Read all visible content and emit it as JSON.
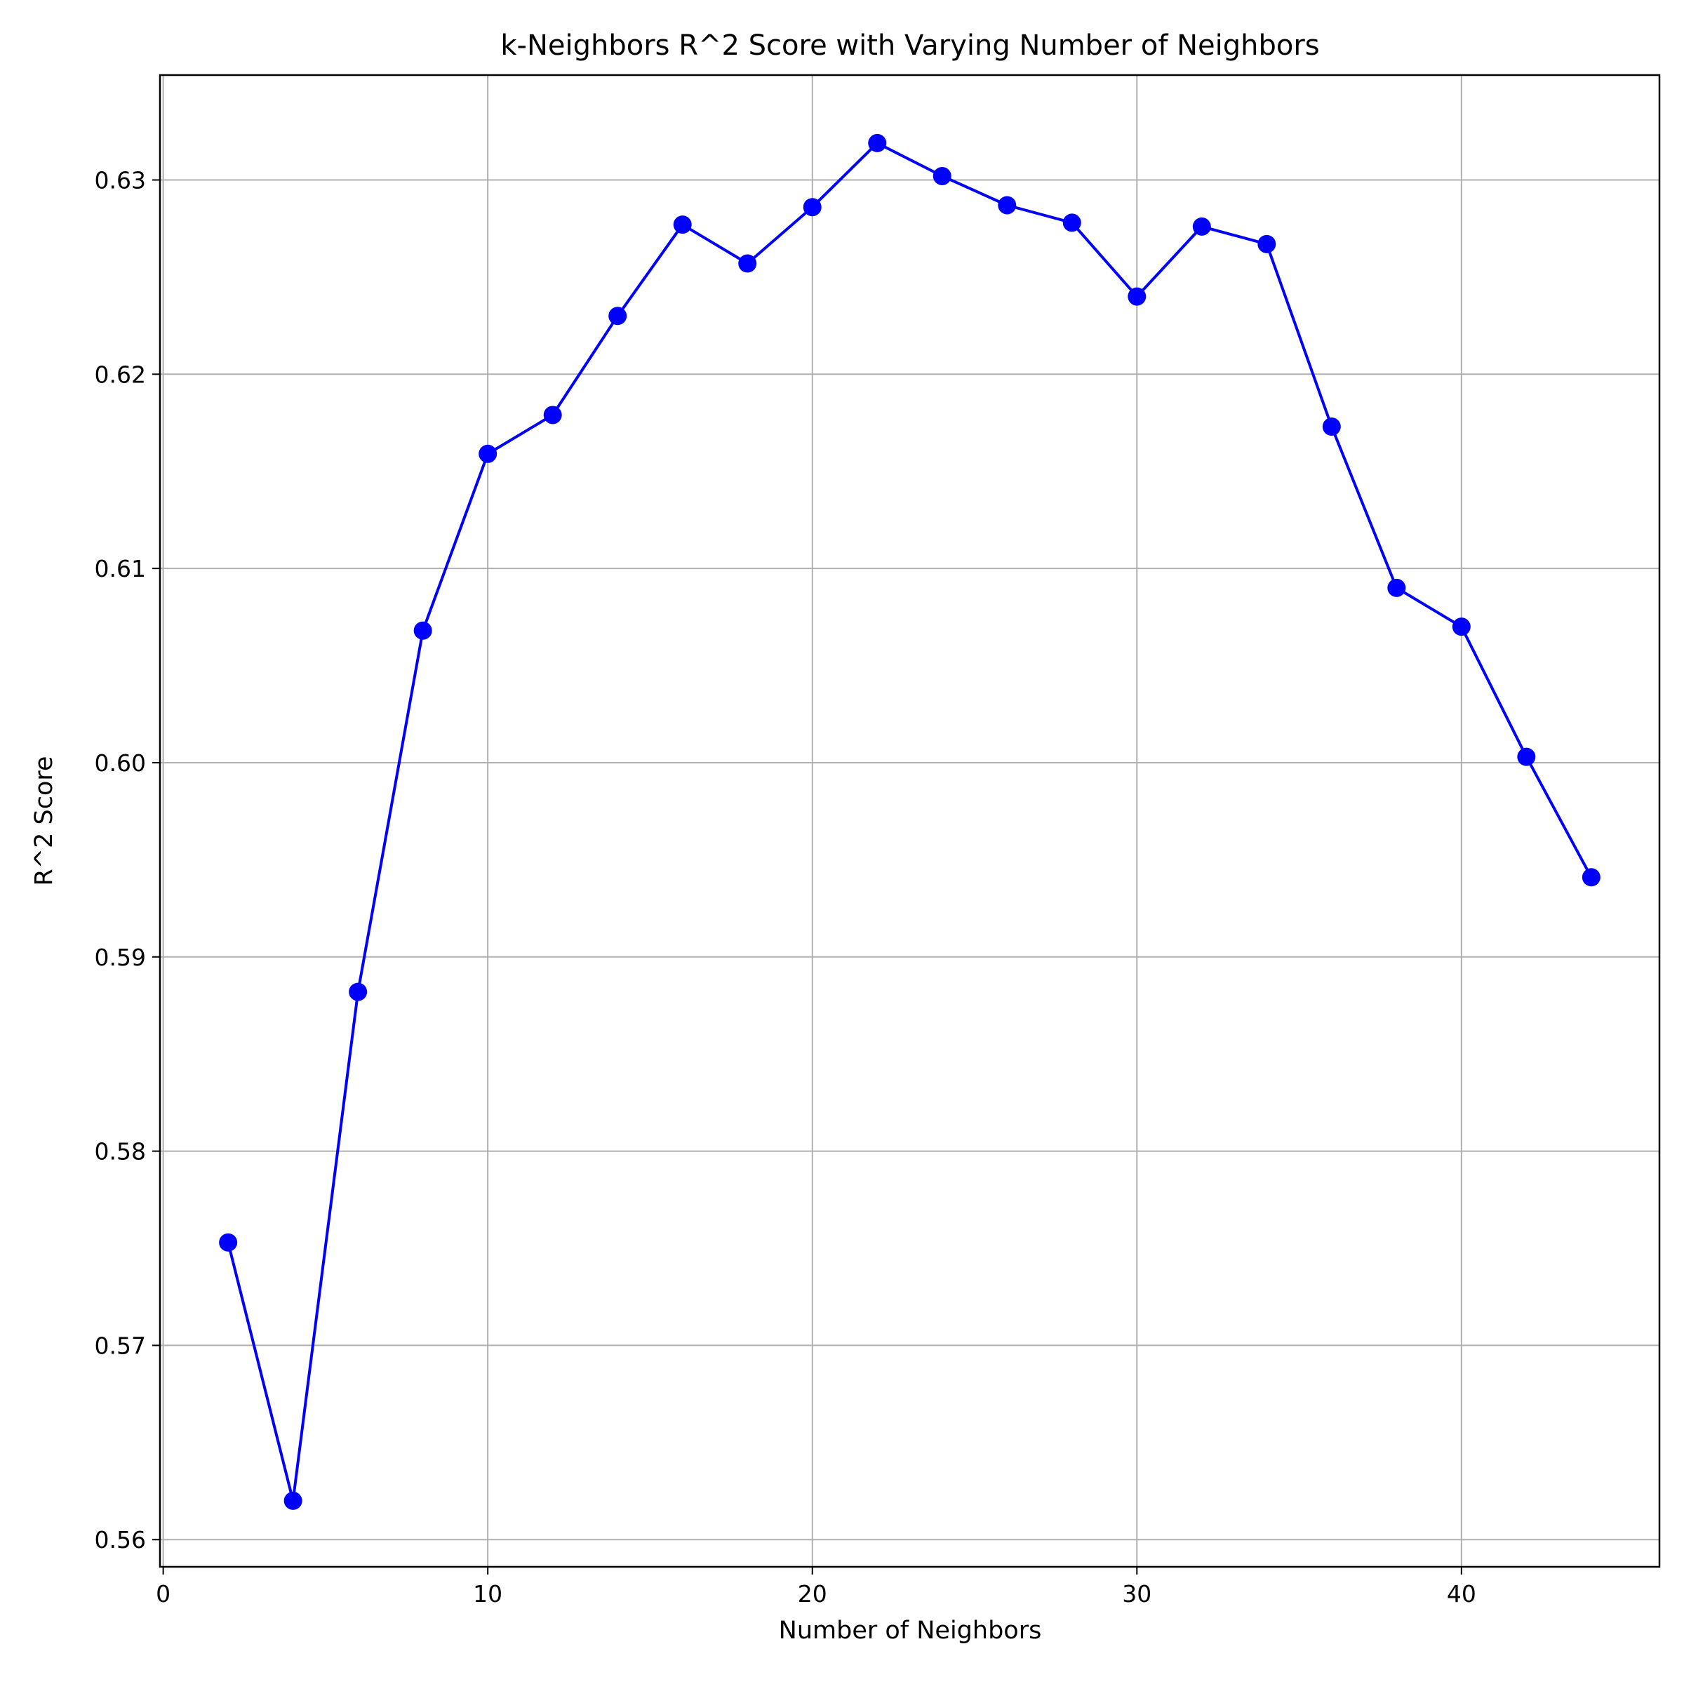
{
  "chart_data": {
    "type": "line",
    "title": "k-Neighbors R^2 Score with Varying Number of Neighbors",
    "xlabel": "Number of Neighbors",
    "ylabel": "R^2 Score",
    "xlim": [
      -0.1,
      46.1
    ],
    "ylim": [
      0.5586,
      0.6354
    ],
    "xticks": [
      0,
      10,
      20,
      30,
      40
    ],
    "xtick_labels": [
      "0",
      "10",
      "20",
      "30",
      "40"
    ],
    "yticks": [
      0.56,
      0.57,
      0.58,
      0.59,
      0.6,
      0.61,
      0.62,
      0.63
    ],
    "ytick_labels": [
      "0.56",
      "0.57",
      "0.58",
      "0.59",
      "0.60",
      "0.61",
      "0.62",
      "0.63"
    ],
    "grid": true,
    "marker": "circle",
    "line_color": "#0000ff",
    "grid_color": "#b0b0b0",
    "series": [
      {
        "x": [
          2,
          4,
          6,
          8,
          10,
          12,
          14,
          16,
          18,
          20,
          22,
          24,
          26,
          28,
          30,
          32,
          34,
          36,
          38,
          40,
          42,
          44
        ],
        "values": [
          0.5753,
          0.562,
          0.5882,
          0.6068,
          0.6159,
          0.6179,
          0.623,
          0.6277,
          0.6257,
          0.6286,
          0.6319,
          0.6302,
          0.6287,
          0.6278,
          0.624,
          0.6276,
          0.6267,
          0.6173,
          0.609,
          0.607,
          0.6003,
          0.5941
        ]
      }
    ]
  }
}
